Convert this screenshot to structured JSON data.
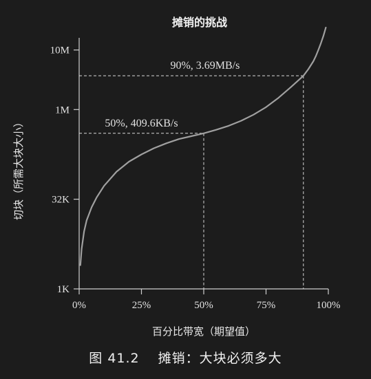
{
  "chart_data": {
    "type": "line",
    "title": "摊销的挑战",
    "xlabel": "百分比带宽（期望值）",
    "ylabel": "切块（所需大块大小）",
    "x_scale": "linear",
    "y_scale": "log",
    "xlim": [
      0,
      100
    ],
    "ylim": [
      1024,
      16777216
    ],
    "x_ticks": [
      0,
      25,
      50,
      75,
      100
    ],
    "x_tick_labels": [
      "0%",
      "25%",
      "50%",
      "75%",
      "100%"
    ],
    "y_ticks": [
      1024,
      32768,
      1048576,
      10485760
    ],
    "y_tick_labels": [
      "1K",
      "32K",
      "1M",
      "10M"
    ],
    "series": [
      {
        "x": [
          0.5,
          1,
          2,
          3,
          5,
          7,
          10,
          15,
          20,
          25,
          30,
          35,
          40,
          45,
          50,
          55,
          60,
          65,
          70,
          75,
          80,
          85,
          90,
          92,
          94,
          95,
          96,
          97,
          98,
          99
        ],
        "y": [
          2560,
          4800,
          9500,
          14500,
          24000,
          35000,
          55000,
          95000,
          140000,
          185000,
          235000,
          285000,
          335000,
          375000,
          419430,
          480000,
          560000,
          680000,
          860000,
          1150000,
          1650000,
          2500000,
          3869245,
          5000000,
          6800000,
          8300000,
          10500000,
          13500000,
          18000000,
          25000000
        ],
        "color": "#a0a0a0"
      }
    ],
    "annotations": [
      {
        "text": "50%, 409.6KB/s",
        "x": 50,
        "y": 419430
      },
      {
        "text": "90%, 3.69MB/s",
        "x": 90,
        "y": 3869245
      }
    ],
    "grid": false
  },
  "caption": "图 41.2　 摊销：大块必须多大"
}
